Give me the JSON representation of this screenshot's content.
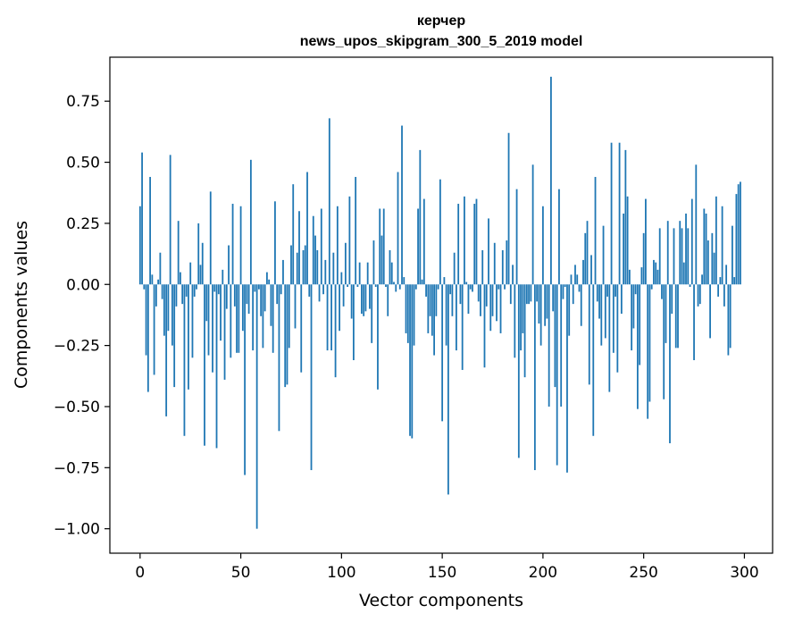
{
  "chart_data": {
    "type": "bar",
    "title": "керчер",
    "subtitle": "news_upos_skipgram_300_5_2019 model",
    "xlabel": "Vector components",
    "ylabel": "Components values",
    "xlim": [
      -15,
      314
    ],
    "ylim": [
      -1.1,
      0.93
    ],
    "xticks": [
      0,
      50,
      100,
      150,
      200,
      250,
      300
    ],
    "xtick_labels": [
      "0",
      "50",
      "100",
      "150",
      "200",
      "250",
      "300"
    ],
    "yticks": [
      0.75,
      0.5,
      0.25,
      0.0,
      -0.25,
      -0.5,
      -0.75,
      -1.0
    ],
    "ytick_labels": [
      "0.75",
      "0.50",
      "0.25",
      "0.00",
      "−0.25",
      "−0.50",
      "−0.75",
      "−1.00"
    ],
    "color": "#1f77b4",
    "x_start": 0,
    "values": [
      0.32,
      0.54,
      -0.02,
      -0.29,
      -0.44,
      0.44,
      0.04,
      -0.37,
      -0.09,
      0.02,
      0.13,
      -0.06,
      -0.21,
      -0.54,
      -0.19,
      0.53,
      -0.25,
      -0.42,
      -0.09,
      0.26,
      0.05,
      -0.08,
      -0.62,
      -0.05,
      -0.43,
      0.09,
      -0.3,
      -0.05,
      -0.02,
      0.25,
      0.08,
      0.17,
      -0.66,
      -0.15,
      -0.29,
      0.38,
      -0.36,
      -0.03,
      -0.67,
      -0.04,
      -0.23,
      0.06,
      -0.39,
      -0.1,
      0.16,
      -0.3,
      0.33,
      -0.09,
      -0.28,
      -0.28,
      0.32,
      -0.19,
      -0.78,
      -0.08,
      -0.12,
      0.51,
      -0.27,
      -0.03,
      -1.0,
      -0.02,
      -0.13,
      -0.26,
      -0.11,
      0.05,
      0.02,
      -0.17,
      -0.28,
      0.34,
      -0.08,
      -0.6,
      -0.04,
      0.1,
      -0.42,
      -0.41,
      -0.26,
      0.16,
      0.41,
      -0.18,
      0.13,
      0.3,
      -0.36,
      0.14,
      0.16,
      0.46,
      -0.05,
      -0.76,
      0.28,
      0.2,
      0.14,
      -0.07,
      0.31,
      -0.04,
      0.1,
      -0.27,
      0.68,
      -0.27,
      0.13,
      -0.38,
      0.32,
      -0.19,
      0.05,
      -0.09,
      0.17,
      -0.01,
      0.36,
      -0.14,
      -0.31,
      0.44,
      -0.01,
      0.09,
      -0.12,
      -0.13,
      -0.11,
      0.09,
      -0.1,
      -0.24,
      0.18,
      -0.01,
      -0.43,
      0.31,
      0.2,
      0.31,
      -0.01,
      -0.13,
      0.14,
      0.09,
      0.01,
      -0.03,
      0.46,
      -0.02,
      0.65,
      0.03,
      -0.2,
      -0.24,
      -0.62,
      -0.63,
      -0.25,
      -0.02,
      0.31,
      0.55,
      0.02,
      0.35,
      -0.05,
      -0.2,
      -0.13,
      -0.21,
      -0.29,
      -0.13,
      -0.02,
      0.43,
      -0.56,
      0.03,
      -0.25,
      -0.86,
      -0.04,
      -0.13,
      0.13,
      -0.27,
      0.33,
      -0.08,
      -0.35,
      0.36,
      0.01,
      -0.12,
      -0.02,
      -0.03,
      0.33,
      0.35,
      -0.07,
      -0.13,
      0.14,
      -0.34,
      -0.09,
      0.27,
      -0.19,
      -0.13,
      0.17,
      -0.15,
      -0.02,
      -0.2,
      0.14,
      -0.02,
      0.18,
      0.62,
      -0.08,
      0.08,
      -0.3,
      0.39,
      -0.71,
      -0.27,
      -0.2,
      -0.38,
      -0.08,
      -0.08,
      -0.07,
      0.49,
      -0.76,
      -0.07,
      -0.16,
      -0.25,
      0.32,
      -0.17,
      -0.14,
      -0.5,
      0.85,
      -0.11,
      -0.42,
      -0.74,
      0.39,
      -0.5,
      -0.06,
      -0.01,
      -0.77,
      -0.21,
      0.04,
      -0.08,
      0.08,
      0.04,
      -0.03,
      -0.17,
      0.1,
      0.21,
      0.26,
      -0.41,
      0.12,
      -0.62,
      0.44,
      -0.07,
      -0.14,
      -0.25,
      0.24,
      -0.22,
      -0.05,
      -0.44,
      0.58,
      -0.28,
      -0.05,
      -0.36,
      0.58,
      -0.12,
      0.29,
      0.55,
      0.36,
      0.06,
      -0.27,
      -0.18,
      -0.04,
      -0.51,
      -0.33,
      0.07,
      0.21,
      0.35,
      -0.55,
      -0.48,
      -0.02,
      0.1,
      0.09,
      0.06,
      0.23,
      -0.06,
      -0.47,
      -0.24,
      0.26,
      -0.65,
      -0.12,
      0.23,
      -0.26,
      -0.26,
      0.26,
      0.23,
      0.09,
      0.29,
      0.23,
      -0.01,
      0.35,
      -0.31,
      0.49,
      -0.09,
      -0.08,
      0.04,
      0.31,
      0.29,
      0.18,
      -0.22,
      0.21,
      0.13,
      0.36,
      -0.05,
      0.03,
      0.32,
      -0.09,
      0.08,
      -0.29,
      -0.26,
      0.24,
      0.03,
      0.37,
      0.41,
      0.42
    ]
  }
}
